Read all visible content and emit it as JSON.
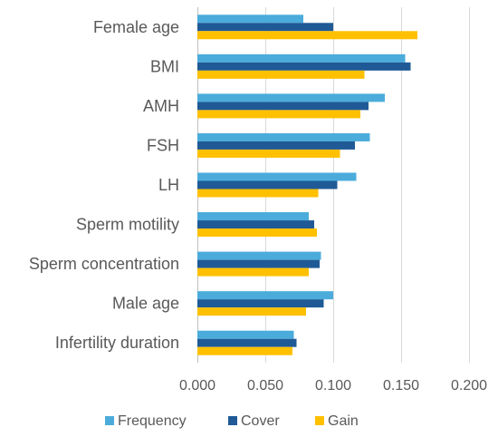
{
  "chart_data": {
    "type": "bar",
    "orientation": "horizontal",
    "title": "",
    "xlabel": "",
    "ylabel": "",
    "categories": [
      "Female age",
      "BMI",
      "AMH",
      "FSH",
      "LH",
      "Sperm motility",
      "Sperm concentration",
      "Male age",
      "Infertility duration"
    ],
    "series": [
      {
        "name": "Frequency",
        "color": "#4bacdb",
        "values": [
          0.078,
          0.153,
          0.138,
          0.127,
          0.117,
          0.082,
          0.091,
          0.1,
          0.071
        ]
      },
      {
        "name": "Cover",
        "color": "#1f5a96",
        "values": [
          0.1,
          0.157,
          0.126,
          0.116,
          0.103,
          0.086,
          0.09,
          0.093,
          0.073
        ]
      },
      {
        "name": "Gain",
        "color": "#ffc000",
        "values": [
          0.162,
          0.123,
          0.12,
          0.105,
          0.089,
          0.088,
          0.082,
          0.08,
          0.07
        ]
      }
    ],
    "xlim": [
      0,
      0.2
    ],
    "xticks": [
      0,
      0.05,
      0.1,
      0.15,
      0.2
    ],
    "xtick_labels": [
      "0.000",
      "0.050",
      "0.100",
      "0.150",
      "0.200"
    ],
    "grid": "vertical",
    "legend_position": "bottom"
  }
}
